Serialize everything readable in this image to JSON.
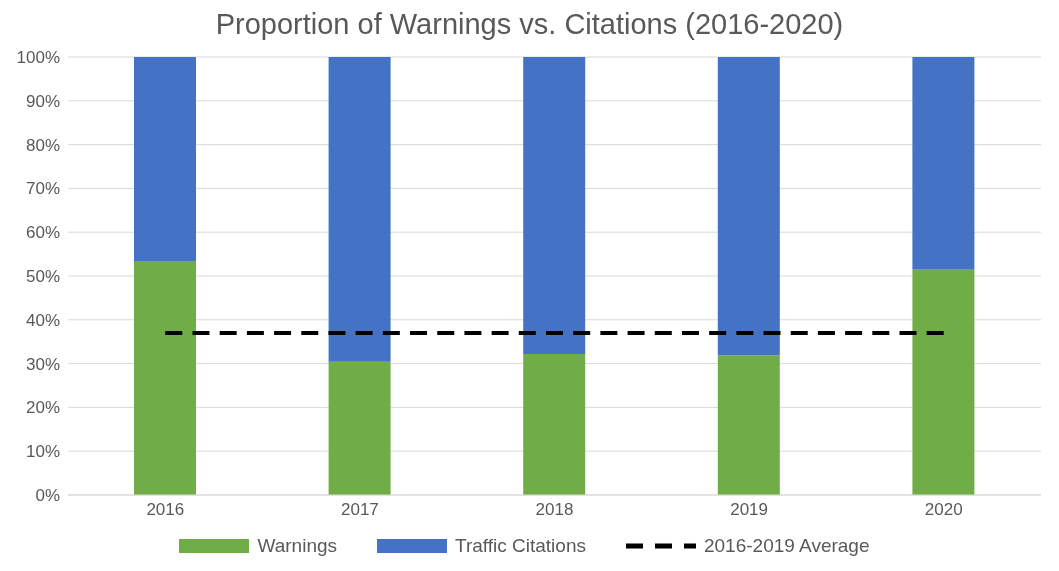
{
  "chart_data": {
    "type": "bar",
    "title": "Proportion of Warnings vs. Citations (2016-2020)",
    "categories": [
      "2016",
      "2017",
      "2018",
      "2019",
      "2020"
    ],
    "stacked": true,
    "series": [
      {
        "name": "Warnings",
        "color": "#70ad47",
        "values": [
          53.4,
          30.4,
          32.2,
          31.9,
          51.6
        ]
      },
      {
        "name": "Traffic Citations",
        "color": "#4472c4",
        "values": [
          46.6,
          69.6,
          67.8,
          68.1,
          48.4
        ]
      },
      {
        "name": "2016-2019 Average",
        "type": "line",
        "color": "#000000",
        "line_style": "dashed",
        "marker": "none",
        "values": [
          37,
          37,
          37,
          37,
          37
        ]
      }
    ],
    "ylim": [
      0,
      100
    ],
    "yticks": [
      {
        "value": 0,
        "label": "0%"
      },
      {
        "value": 10,
        "label": "10%"
      },
      {
        "value": 20,
        "label": "20%"
      },
      {
        "value": 30,
        "label": "30%"
      },
      {
        "value": 40,
        "label": "40%"
      },
      {
        "value": 50,
        "label": "50%"
      },
      {
        "value": 60,
        "label": "60%"
      },
      {
        "value": 70,
        "label": "70%"
      },
      {
        "value": 80,
        "label": "80%"
      },
      {
        "value": 90,
        "label": "90%"
      },
      {
        "value": 100,
        "label": "100%"
      }
    ],
    "grid": "y",
    "legend": "bottom"
  }
}
